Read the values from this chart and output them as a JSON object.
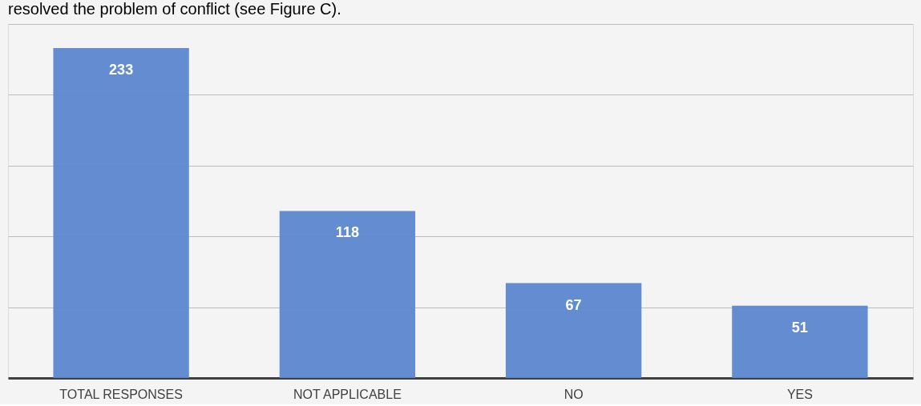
{
  "chart_data": {
    "type": "bar",
    "annotations": [
      "resolved the problem of conflict (see Figure C)."
    ],
    "categories": [
      "TOTAL RESPONSES",
      "NOT APPLICABLE",
      "NO",
      "YES"
    ],
    "values": [
      233,
      118,
      67,
      51
    ],
    "color": "#5b87cd",
    "data_labels": true,
    "ylim": [
      0,
      250
    ],
    "yticks": [
      {
        "value": 0,
        "label": null
      },
      {
        "value": 50,
        "label": null
      },
      {
        "value": 100,
        "label": null
      },
      {
        "value": 150,
        "label": null
      },
      {
        "value": 200,
        "label": null
      },
      {
        "value": 250,
        "label": null
      }
    ],
    "grid": "y",
    "tick_labels": "x"
  }
}
